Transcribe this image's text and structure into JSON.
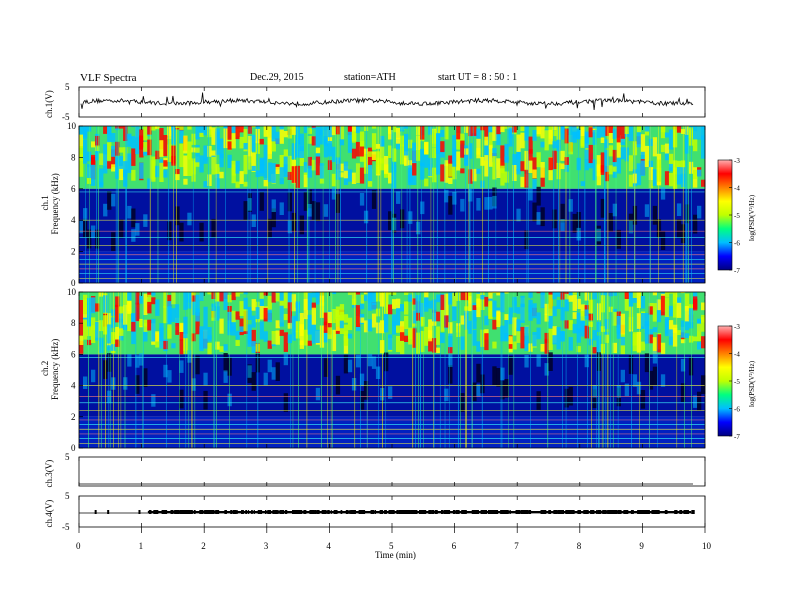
{
  "header": {
    "title": "VLF  Spectra",
    "date": "Dec.29, 2015",
    "station": "station=ATH",
    "start": "start  UT  =   8 : 50 : 1"
  },
  "chart_data": [
    {
      "panel": "ch1-waveform",
      "type": "line",
      "ylabel": "ch.1(V)",
      "ylim": [
        -5,
        5
      ],
      "y_ticks": [
        "5",
        "-5"
      ]
    },
    {
      "panel": "ch1-spectrogram",
      "type": "heatmap",
      "ylabel": "Frequency  (kHz)",
      "channel_label": "ch.1",
      "ylim": [
        0,
        10
      ],
      "y_ticks": [
        "0",
        "2",
        "4",
        "6",
        "8",
        "10"
      ],
      "colorbar": {
        "label": "log(PSD(V²/Hz)",
        "range": [
          -7,
          -3
        ],
        "ticks": [
          "-3",
          "-4",
          "-5",
          "-6",
          "-7"
        ]
      },
      "description_bands": [
        {
          "from_khz": 0,
          "to_khz": 2,
          "level": "mixed"
        },
        {
          "from_khz": 2,
          "to_khz": 6,
          "level": "low"
        },
        {
          "from_khz": 6,
          "to_khz": 10,
          "level": "high"
        }
      ]
    },
    {
      "panel": "ch2-spectrogram",
      "type": "heatmap",
      "ylabel": "Frequency  (kHz)",
      "channel_label": "ch.2",
      "ylim": [
        0,
        10
      ],
      "y_ticks": [
        "0",
        "2",
        "4",
        "6",
        "8",
        "10"
      ],
      "colorbar": {
        "label": "log(PSD(V²/Hz)",
        "range": [
          -7,
          -3
        ],
        "ticks": [
          "-3",
          "-4",
          "-5",
          "-6",
          "-7"
        ]
      }
    },
    {
      "panel": "ch3-waveform",
      "type": "line",
      "ylabel": "ch.3(V)",
      "ylim": [
        -5,
        5
      ],
      "y_ticks": [
        "5"
      ]
    },
    {
      "panel": "ch4-waveform",
      "type": "line",
      "ylabel": "ch.4(V)",
      "ylim": [
        -5,
        5
      ],
      "y_ticks": [
        "5",
        "-5"
      ]
    },
    {
      "panel": "time-axis",
      "xlabel": "Time  (min)",
      "xlim": [
        0,
        10
      ],
      "x_ticks": [
        "0",
        "1",
        "2",
        "3",
        "4",
        "5",
        "6",
        "7",
        "8",
        "9",
        "10"
      ]
    }
  ],
  "colors": {
    "scale": [
      "#000080",
      "#0000ff",
      "#00bfff",
      "#00ff80",
      "#c0ff00",
      "#ffff00",
      "#ff8000",
      "#ff0000",
      "#ffb0b0"
    ]
  }
}
